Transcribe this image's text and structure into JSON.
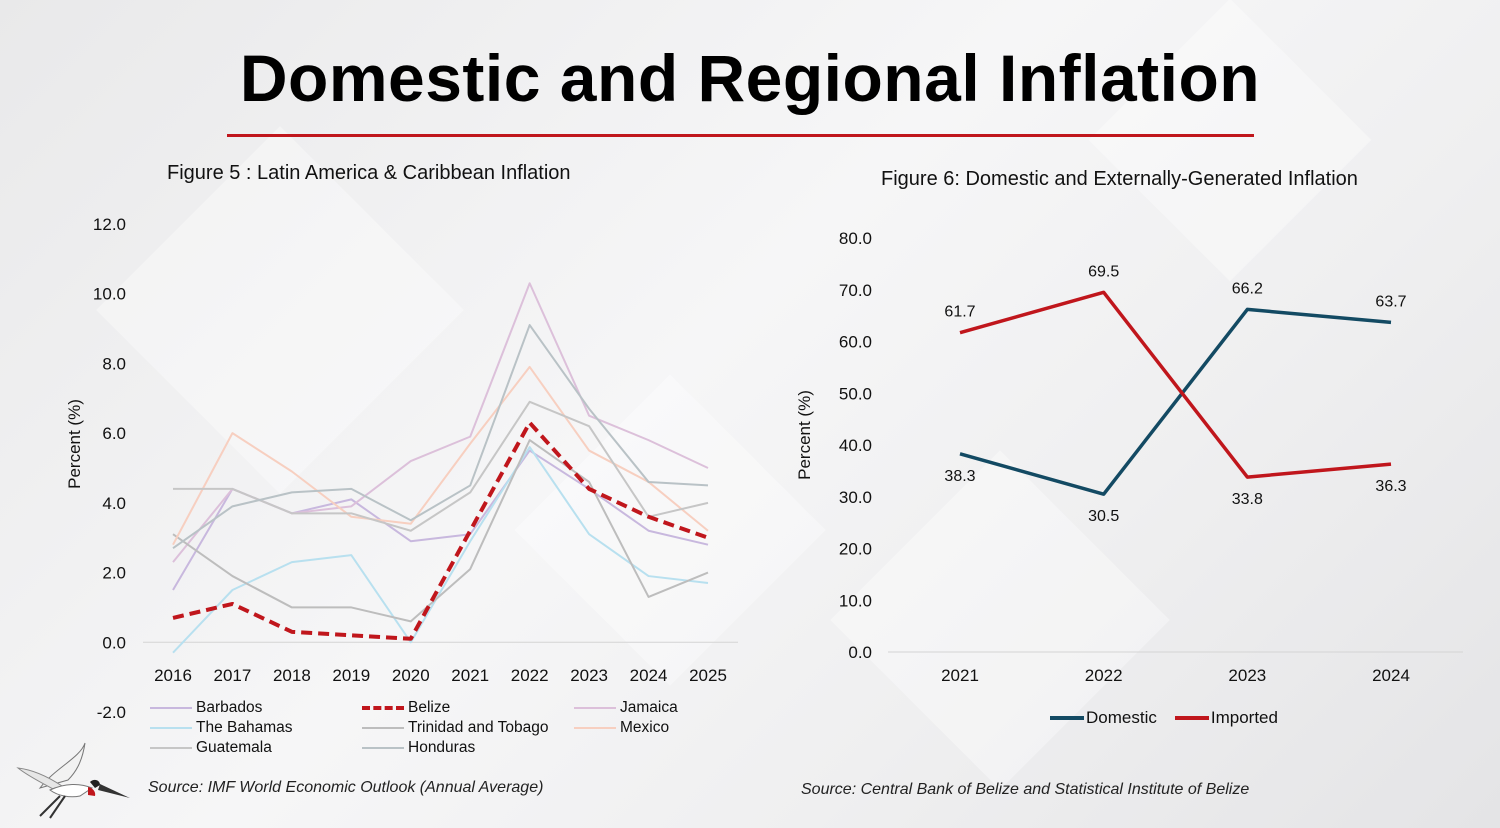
{
  "page_title": "Domestic and Regional Inflation",
  "colors": {
    "accent": "#c0161c",
    "domestic": "#134a63",
    "imported": "#c0161c"
  },
  "chart_data": [
    {
      "type": "line",
      "title": "Figure 5 : Latin America & Caribbean Inflation",
      "ylabel": "Percent (%)",
      "xlabel": "",
      "x": [
        "2016",
        "2017",
        "2018",
        "2019",
        "2020",
        "2021",
        "2022",
        "2023",
        "2024",
        "2025"
      ],
      "ylim": [
        -2.0,
        12.0
      ],
      "yticks": [
        "12.0",
        "10.0",
        "8.0",
        "6.0",
        "4.0",
        "2.0",
        "0.0",
        "-2.0"
      ],
      "grid": false,
      "legend_position": "bottom",
      "source": "Source: IMF World Economic Outlook  (Annual Average)",
      "series": [
        {
          "name": "Barbados",
          "color": "#c8b8de",
          "dashed": false,
          "values": [
            1.5,
            4.4,
            3.7,
            4.1,
            2.9,
            3.1,
            5.5,
            4.4,
            3.2,
            2.8
          ]
        },
        {
          "name": "Belize",
          "color": "#c0161c",
          "dashed": true,
          "values": [
            0.7,
            1.1,
            0.3,
            0.2,
            0.1,
            3.2,
            6.3,
            4.4,
            3.6,
            3.0
          ]
        },
        {
          "name": "Jamaica",
          "color": "#dcc0da",
          "dashed": false,
          "values": [
            2.3,
            4.4,
            3.7,
            3.9,
            5.2,
            5.9,
            10.3,
            6.5,
            5.8,
            5.0
          ]
        },
        {
          "name": "The Bahamas",
          "color": "#b8e0ef",
          "dashed": false,
          "values": [
            -0.3,
            1.5,
            2.3,
            2.5,
            0.0,
            2.9,
            5.6,
            3.1,
            1.9,
            1.7
          ]
        },
        {
          "name": "Trinidad and Tobago",
          "color": "#bdbdbd",
          "dashed": false,
          "values": [
            3.1,
            1.9,
            1.0,
            1.0,
            0.6,
            2.1,
            5.8,
            4.6,
            1.3,
            2.0
          ]
        },
        {
          "name": "Mexico",
          "color": "#f7cfc0",
          "dashed": false,
          "values": [
            2.8,
            6.0,
            4.9,
            3.6,
            3.4,
            5.7,
            7.9,
            5.5,
            4.6,
            3.2
          ]
        },
        {
          "name": "Guatemala",
          "color": "#c6c6c6",
          "dashed": false,
          "values": [
            4.4,
            4.4,
            3.7,
            3.7,
            3.2,
            4.3,
            6.9,
            6.2,
            3.6,
            4.0
          ]
        },
        {
          "name": "Honduras",
          "color": "#b9c2c6",
          "dashed": false,
          "values": [
            2.7,
            3.9,
            4.3,
            4.4,
            3.5,
            4.5,
            9.1,
            6.7,
            4.6,
            4.5
          ]
        }
      ]
    },
    {
      "type": "line",
      "title": "Figure 6: Domestic and Externally-Generated Inflation",
      "ylabel": "Percent (%)",
      "xlabel": "",
      "x": [
        "2021",
        "2022",
        "2023",
        "2024"
      ],
      "ylim": [
        0.0,
        80.0
      ],
      "yticks": [
        "80.0",
        "70.0",
        "60.0",
        "50.0",
        "40.0",
        "30.0",
        "20.0",
        "10.0",
        "0.0"
      ],
      "grid": false,
      "legend_position": "bottom",
      "source": "Source: Central Bank of Belize and Statistical Institute of Belize",
      "series": [
        {
          "name": "Domestic",
          "color": "#134a63",
          "values": [
            38.3,
            30.5,
            66.2,
            63.7
          ],
          "labels": [
            "38.3",
            "30.5",
            "66.2",
            "63.7"
          ]
        },
        {
          "name": "Imported",
          "color": "#c0161c",
          "values": [
            61.7,
            69.5,
            33.8,
            36.3
          ],
          "labels": [
            "61.7",
            "69.5",
            "33.8",
            "36.3"
          ]
        }
      ]
    }
  ]
}
